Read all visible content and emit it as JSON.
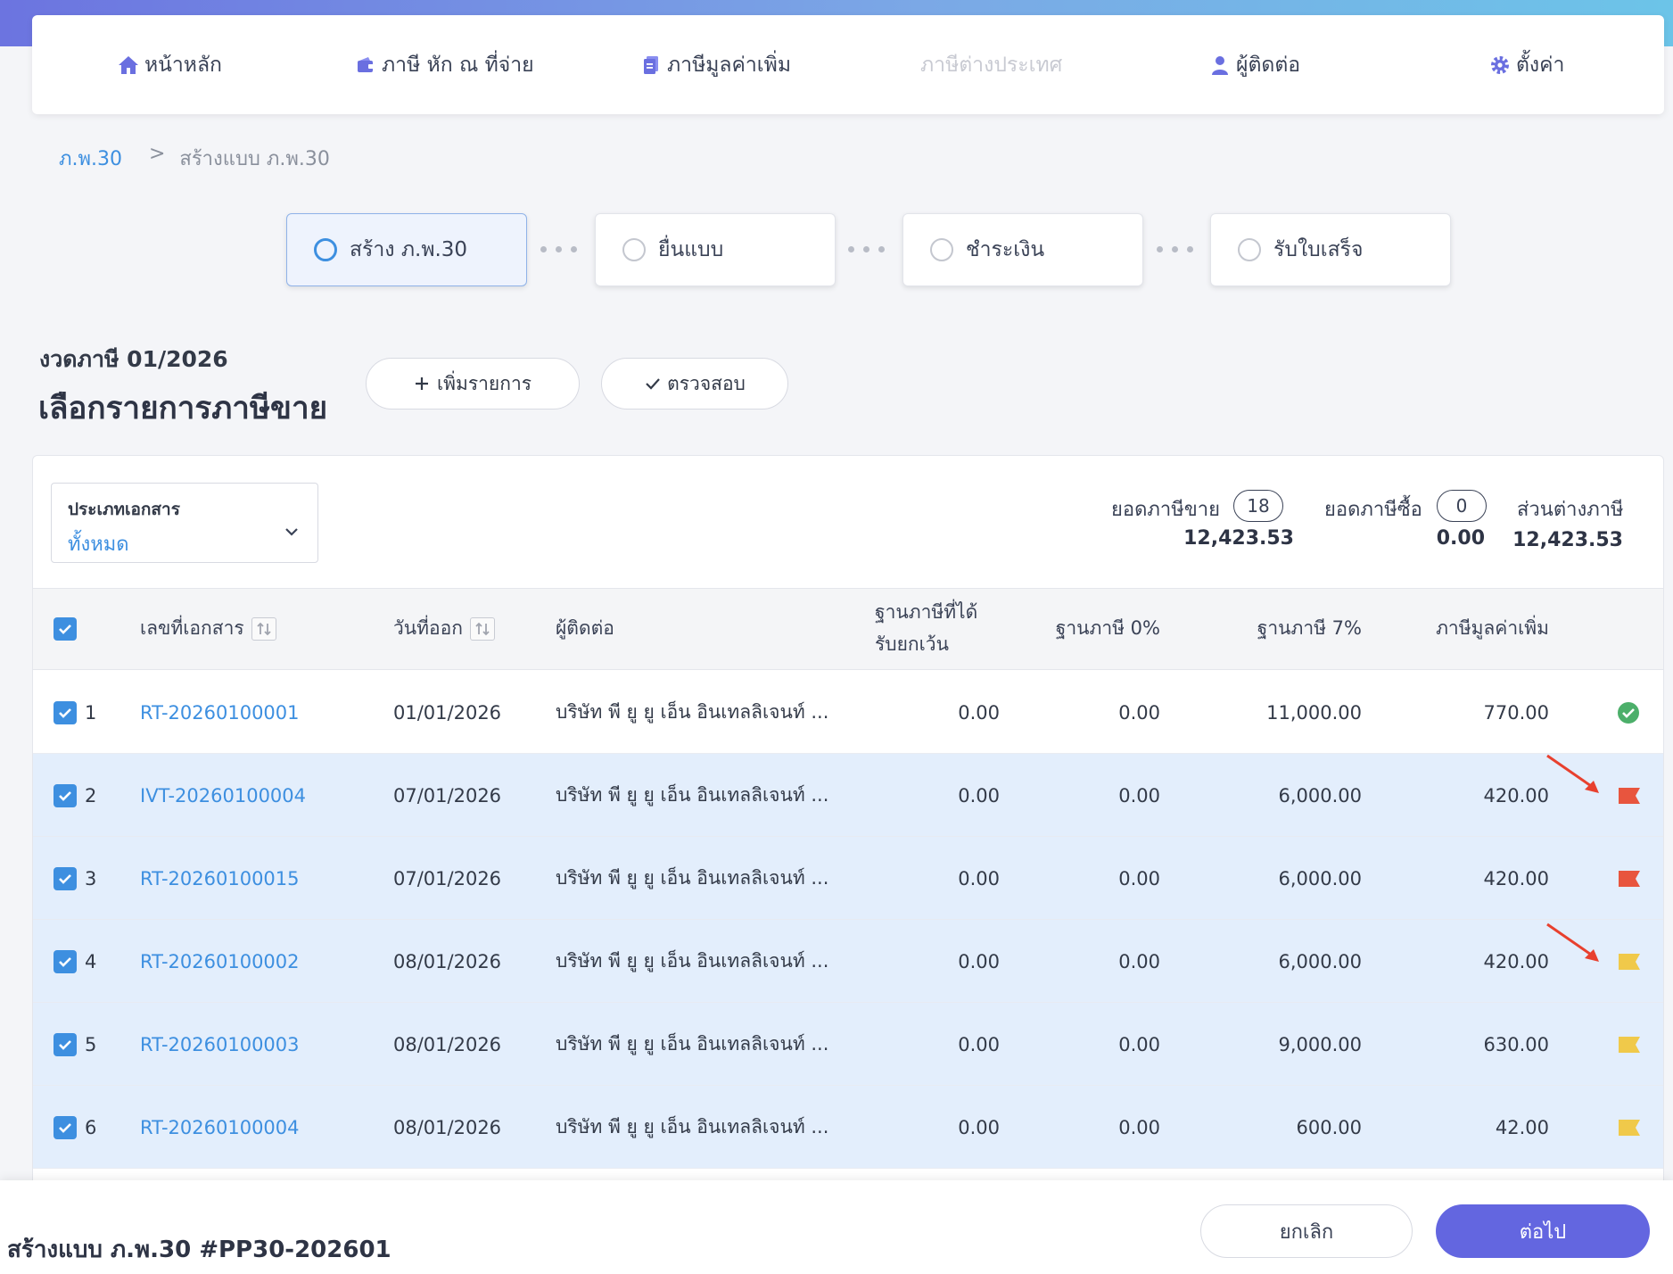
{
  "nav": {
    "items": [
      {
        "label": "หน้าหลัก",
        "icon": "home-icon"
      },
      {
        "label": "ภาษี หัก ณ ที่จ่าย",
        "icon": "wallet-icon"
      },
      {
        "label": "ภาษีมูลค่าเพิ่ม",
        "icon": "document-icon"
      },
      {
        "label": "ภาษีต่างประเทศ",
        "icon": "",
        "disabled": true
      },
      {
        "label": "ผู้ติดต่อ",
        "icon": "user-icon"
      },
      {
        "label": "ตั้งค่า",
        "icon": "gear-icon"
      }
    ]
  },
  "breadcrumb": {
    "root": "ภ.พ.30",
    "sep": ">",
    "current": "สร้างแบบ ภ.พ.30"
  },
  "steps": [
    {
      "label": "สร้าง ภ.พ.30",
      "active": true
    },
    {
      "label": "ยื่นแบบ",
      "active": false
    },
    {
      "label": "ชำระเงิน",
      "active": false
    },
    {
      "label": "รับใบเสร็จ",
      "active": false
    }
  ],
  "header": {
    "period": "งวดภาษี 01/2026",
    "title": "เลือกรายการภาษีขาย",
    "add_label": "เพิ่มรายการ",
    "check_label": "ตรวจสอบ"
  },
  "filter": {
    "label": "ประเภทเอกสาร",
    "value": "ทั้งหมด"
  },
  "summary": {
    "sales_label": "ยอดภาษีขาย",
    "sales_count": "18",
    "sales_value": "12,423.53",
    "purchase_label": "ยอดภาษีซื้อ",
    "purchase_count": "0",
    "purchase_value": "0.00",
    "diff_label": "ส่วนต่างภาษี",
    "diff_value": "12,423.53"
  },
  "table": {
    "columns": {
      "doc_no": "เลขที่เอกสาร",
      "date": "วันที่ออก",
      "contact": "ผู้ติดต่อ",
      "exempt_1": "ฐานภาษีที่ได้",
      "exempt_2": "รับยกเว้น",
      "base0": "ฐานภาษี 0%",
      "base7": "ฐานภาษี 7%",
      "vat": "ภาษีมูลค่าเพิ่ม"
    },
    "rows": [
      {
        "no": "1",
        "doc": "RT-20260100001",
        "date": "01/01/2026",
        "contact": "บริษัท พี ยู ยู เอ็น อินเทลลิเจนท์ ...",
        "exempt": "0.00",
        "base0": "0.00",
        "base7": "11,000.00",
        "vat": "770.00",
        "status": "ok",
        "selected": false
      },
      {
        "no": "2",
        "doc": "IVT-20260100004",
        "date": "07/01/2026",
        "contact": "บริษัท พี ยู ยู เอ็น อินเทลลิเจนท์ ...",
        "exempt": "0.00",
        "base0": "0.00",
        "base7": "6,000.00",
        "vat": "420.00",
        "status": "red",
        "selected": true
      },
      {
        "no": "3",
        "doc": "RT-20260100015",
        "date": "07/01/2026",
        "contact": "บริษัท พี ยู ยู เอ็น อินเทลลิเจนท์ ...",
        "exempt": "0.00",
        "base0": "0.00",
        "base7": "6,000.00",
        "vat": "420.00",
        "status": "red",
        "selected": true
      },
      {
        "no": "4",
        "doc": "RT-20260100002",
        "date": "08/01/2026",
        "contact": "บริษัท พี ยู ยู เอ็น อินเทลลิเจนท์ ...",
        "exempt": "0.00",
        "base0": "0.00",
        "base7": "6,000.00",
        "vat": "420.00",
        "status": "yellow",
        "selected": true
      },
      {
        "no": "5",
        "doc": "RT-20260100003",
        "date": "08/01/2026",
        "contact": "บริษัท พี ยู ยู เอ็น อินเทลลิเจนท์ ...",
        "exempt": "0.00",
        "base0": "0.00",
        "base7": "9,000.00",
        "vat": "630.00",
        "status": "yellow",
        "selected": true
      },
      {
        "no": "6",
        "doc": "RT-20260100004",
        "date": "08/01/2026",
        "contact": "บริษัท พี ยู ยู เอ็น อินเทลลิเจนท์ ...",
        "exempt": "0.00",
        "base0": "0.00",
        "base7": "600.00",
        "vat": "42.00",
        "status": "yellow",
        "selected": true
      }
    ]
  },
  "footer": {
    "title": "สร้างแบบ ภ.พ.30 #PP30-202601",
    "cancel": "ยกเลิก",
    "next": "ต่อไป"
  },
  "colors": {
    "accent": "#3d8fe0",
    "primary_button": "#6366e0",
    "flag_red": "#e8553e",
    "flag_yellow": "#f0c94a",
    "ok_green": "#4caf6a",
    "selected_row": "#e3eefc"
  }
}
